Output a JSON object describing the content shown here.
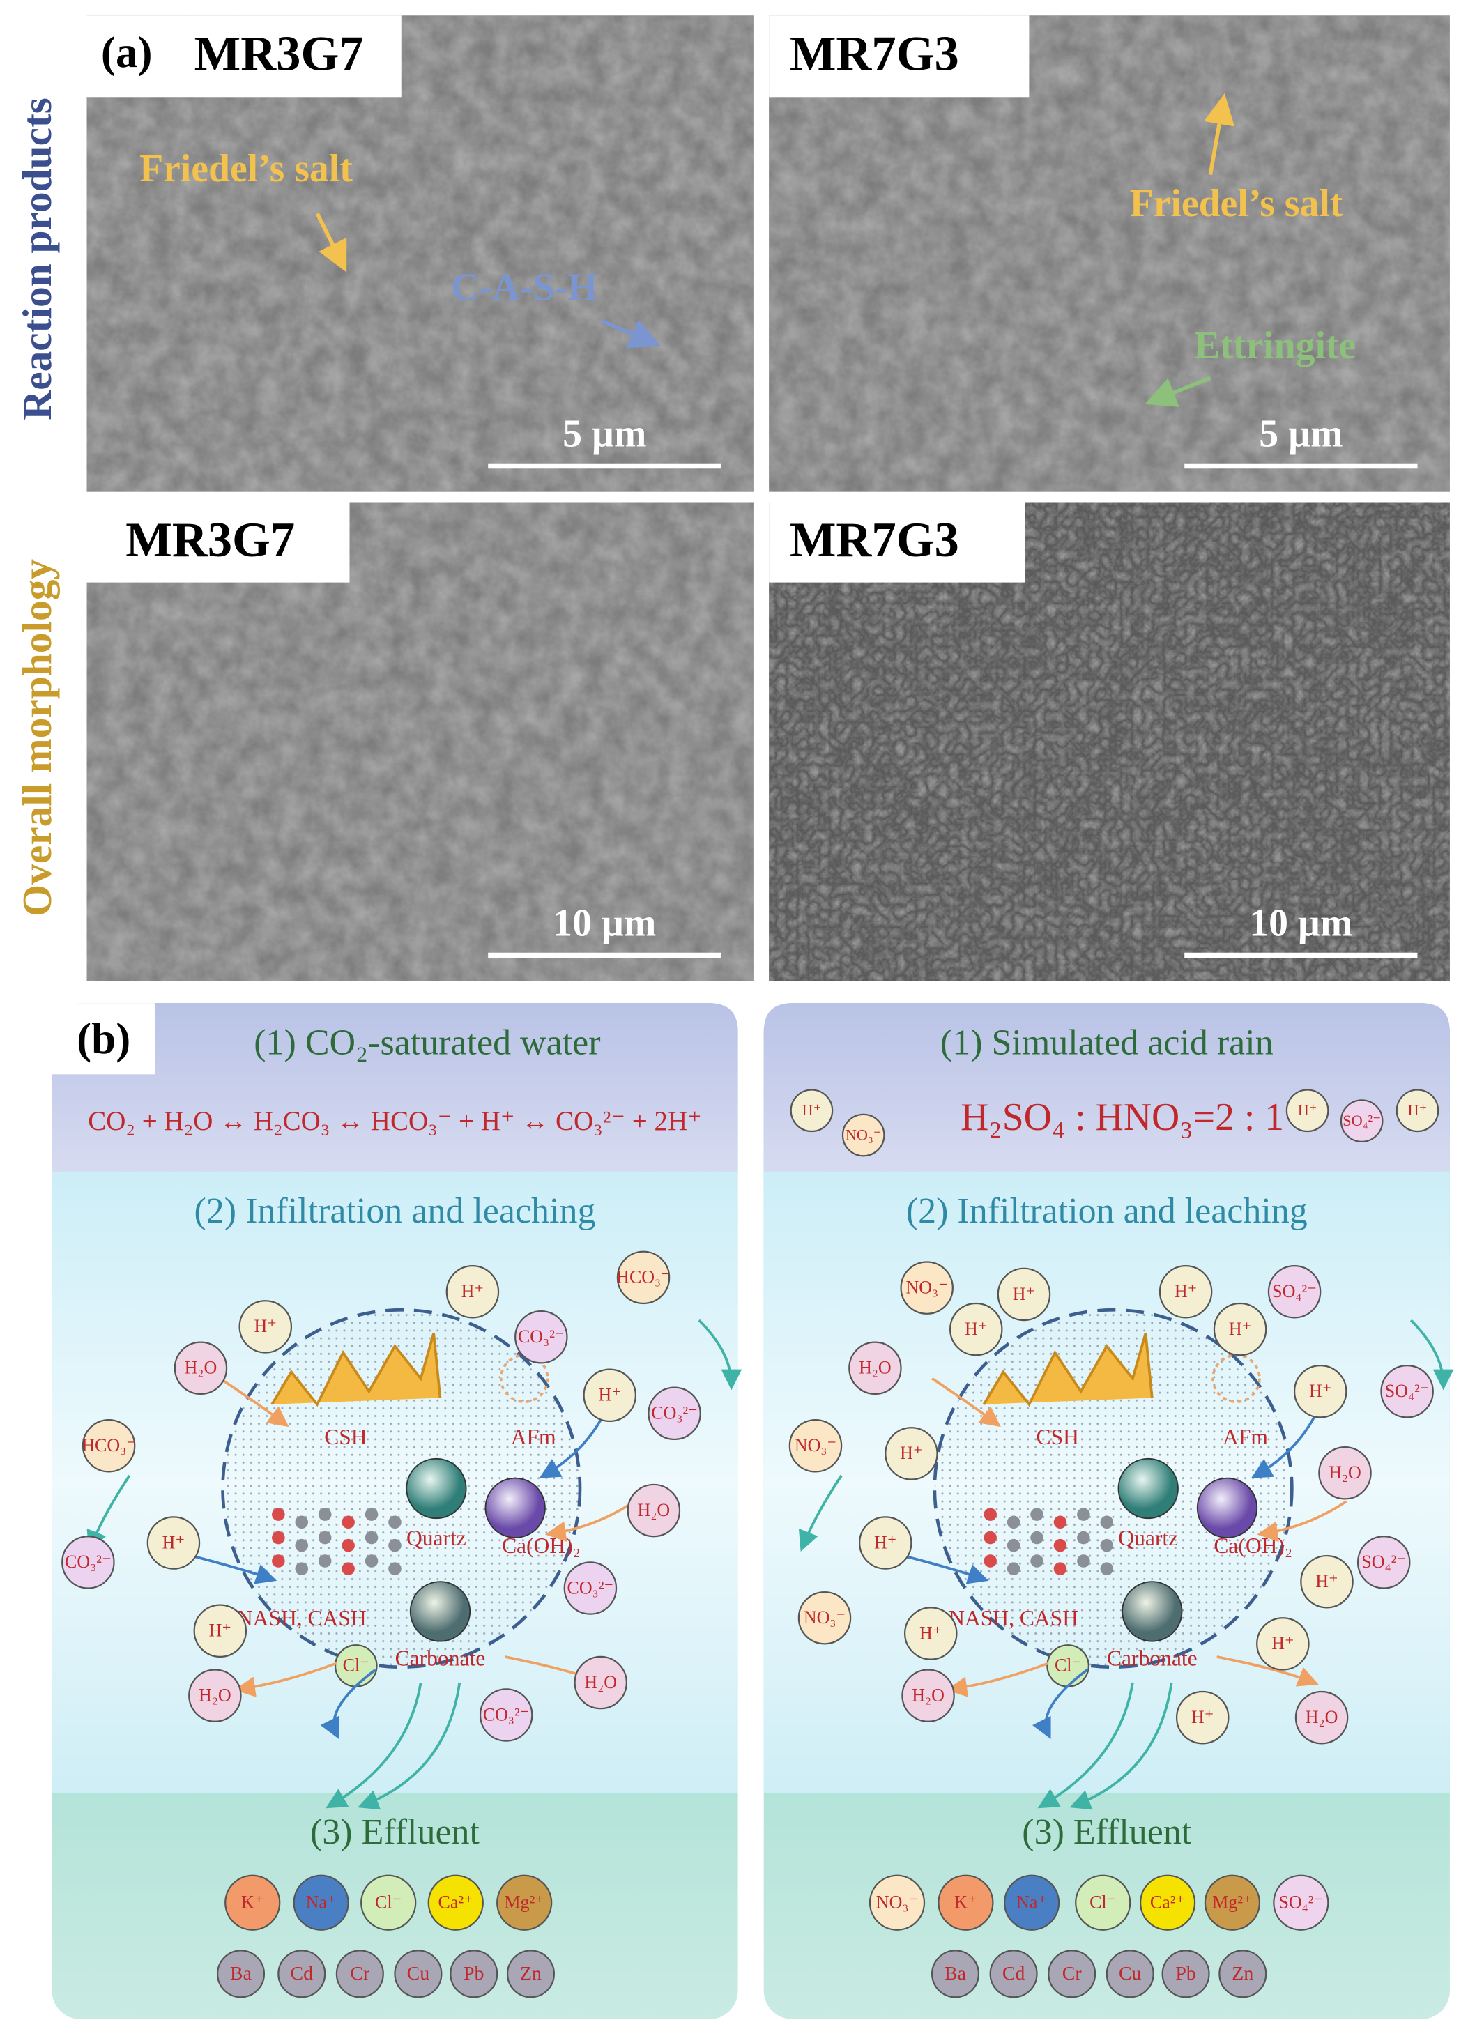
{
  "panel_a": {
    "label": "(a)",
    "row_labels": [
      "Reaction products",
      "Overall morphology"
    ],
    "images": [
      {
        "sample": "MR3G7",
        "scale_bar": "5 µm",
        "annotations": [
          "Friedel’s salt",
          "C-A-S-H"
        ]
      },
      {
        "sample": "MR7G3",
        "scale_bar": "5 µm",
        "annotations": [
          "Friedel’s salt",
          "Ettringite"
        ]
      },
      {
        "sample": "MR3G7",
        "scale_bar": "10 µm"
      },
      {
        "sample": "MR7G3",
        "scale_bar": "10 µm"
      }
    ]
  },
  "panel_b": {
    "label": "(b)",
    "schemes": [
      {
        "step1": "(1) CO₂-saturated water",
        "equation": "CO₂ + H₂O ↔ H₂CO₃ ↔ HCO₃⁻ + H⁺ ↔ CO₃²⁻ + 2H⁺",
        "step2": "(2) Infiltration and leaching",
        "core_labels": [
          "CSH",
          "AFm",
          "Quartz",
          "Ca(OH)₂",
          "NASH, CASH",
          "Carbonate"
        ],
        "core_ion": {
          "label": "Cl⁻",
          "color": "#d3edb8"
        },
        "ions": [
          {
            "label": "H⁺",
            "color": "#f4efd2"
          },
          {
            "label": "HCO₃⁻",
            "color": "#f9e7c8"
          },
          {
            "label": "H⁺",
            "color": "#f4efd2"
          },
          {
            "label": "CO₃²⁻",
            "color": "#ecd3ef"
          },
          {
            "label": "H₂O",
            "color": "#f1d4e4"
          },
          {
            "label": "H⁺",
            "color": "#f4efd2"
          },
          {
            "label": "CO₃²⁻",
            "color": "#ecd3ef"
          },
          {
            "label": "HCO₃⁻",
            "color": "#f9e7c8"
          },
          {
            "label": "H₂O",
            "color": "#f1d4e4"
          },
          {
            "label": "H⁺",
            "color": "#f4efd2"
          },
          {
            "label": "CO₃²⁻",
            "color": "#ecd3ef"
          },
          {
            "label": "CO₃²⁻",
            "color": "#ecd3ef"
          },
          {
            "label": "H⁺",
            "color": "#f4efd2"
          },
          {
            "label": "H₂O",
            "color": "#f1d4e4"
          },
          {
            "label": "CO₃²⁻",
            "color": "#ecd3ef"
          },
          {
            "label": "H₂O",
            "color": "#f1d4e4"
          }
        ],
        "step3": "(3) Effluent",
        "effluent_ions": [
          {
            "label": "K⁺",
            "color": "#f29a6a"
          },
          {
            "label": "Na⁺",
            "color": "#4a7fc4"
          },
          {
            "label": "Cl⁻",
            "color": "#d3edb8"
          },
          {
            "label": "Ca²⁺",
            "color": "#f5e200"
          },
          {
            "label": "Mg²⁺",
            "color": "#c89a4a"
          }
        ],
        "heavy_metals": [
          {
            "label": "Ba",
            "color": "#a9a6b5"
          },
          {
            "label": "Cd",
            "color": "#a9a6b5"
          },
          {
            "label": "Cr",
            "color": "#a9a6b5"
          },
          {
            "label": "Cu",
            "color": "#a9a6b5"
          },
          {
            "label": "Pb",
            "color": "#a9a6b5"
          },
          {
            "label": "Zn",
            "color": "#a9a6b5"
          }
        ]
      },
      {
        "step1": "(1) Simulated acid rain",
        "equation": "H₂SO₄ : HNO₃=2 : 1",
        "header_ions": [
          {
            "label": "H⁺",
            "color": "#f4efd2"
          },
          {
            "label": "NO₃⁻",
            "color": "#fbe7c6"
          },
          {
            "label": "H⁺",
            "color": "#f4efd2"
          },
          {
            "label": "SO₄²⁻",
            "color": "#efd4ee"
          },
          {
            "label": "H⁺",
            "color": "#f4efd2"
          }
        ],
        "step2": "(2) Infiltration and leaching",
        "core_labels": [
          "CSH",
          "AFm",
          "Quartz",
          "Ca(OH)₂",
          "NASH, CASH",
          "Carbonate"
        ],
        "core_ion": {
          "label": "Cl⁻",
          "color": "#d3edb8"
        },
        "ions": [
          {
            "label": "NO₃⁻",
            "color": "#fbe7c6"
          },
          {
            "label": "H⁺",
            "color": "#f4efd2"
          },
          {
            "label": "H⁺",
            "color": "#f4efd2"
          },
          {
            "label": "SO₄²⁻",
            "color": "#efd4ee"
          },
          {
            "label": "H⁺",
            "color": "#f4efd2"
          },
          {
            "label": "H⁺",
            "color": "#f4efd2"
          },
          {
            "label": "H₂O",
            "color": "#f1d4e4"
          },
          {
            "label": "SO₄²⁻",
            "color": "#efd4ee"
          },
          {
            "label": "H⁺",
            "color": "#f4efd2"
          },
          {
            "label": "NO₃⁻",
            "color": "#fbe7c6"
          },
          {
            "label": "H⁺",
            "color": "#f4efd2"
          },
          {
            "label": "H₂O",
            "color": "#f1d4e4"
          },
          {
            "label": "H⁺",
            "color": "#f4efd2"
          },
          {
            "label": "H⁺",
            "color": "#f4efd2"
          },
          {
            "label": "SO₄²⁻",
            "color": "#efd4ee"
          },
          {
            "label": "NO₃⁻",
            "color": "#fbe7c6"
          },
          {
            "label": "H⁺",
            "color": "#f4efd2"
          },
          {
            "label": "H⁺",
            "color": "#f4efd2"
          },
          {
            "label": "H₂O",
            "color": "#f1d4e4"
          },
          {
            "label": "H⁺",
            "color": "#f4efd2"
          },
          {
            "label": "H₂O",
            "color": "#f1d4e4"
          }
        ],
        "step3": "(3) Effluent",
        "effluent_ions": [
          {
            "label": "NO₃⁻",
            "color": "#fbe7c6"
          },
          {
            "label": "K⁺",
            "color": "#f29a6a"
          },
          {
            "label": "Na⁺",
            "color": "#4a7fc4"
          },
          {
            "label": "Cl⁻",
            "color": "#d3edb8"
          },
          {
            "label": "Ca²⁺",
            "color": "#f5e200"
          },
          {
            "label": "Mg²⁺",
            "color": "#c89a4a"
          },
          {
            "label": "SO₄²⁻",
            "color": "#efd4ee"
          }
        ],
        "heavy_metals": [
          {
            "label": "Ba",
            "color": "#a9a6b5"
          },
          {
            "label": "Cd",
            "color": "#a9a6b5"
          },
          {
            "label": "Cr",
            "color": "#a9a6b5"
          },
          {
            "label": "Cu",
            "color": "#a9a6b5"
          },
          {
            "label": "Pb",
            "color": "#a9a6b5"
          },
          {
            "label": "Zn",
            "color": "#a9a6b5"
          }
        ]
      }
    ]
  }
}
